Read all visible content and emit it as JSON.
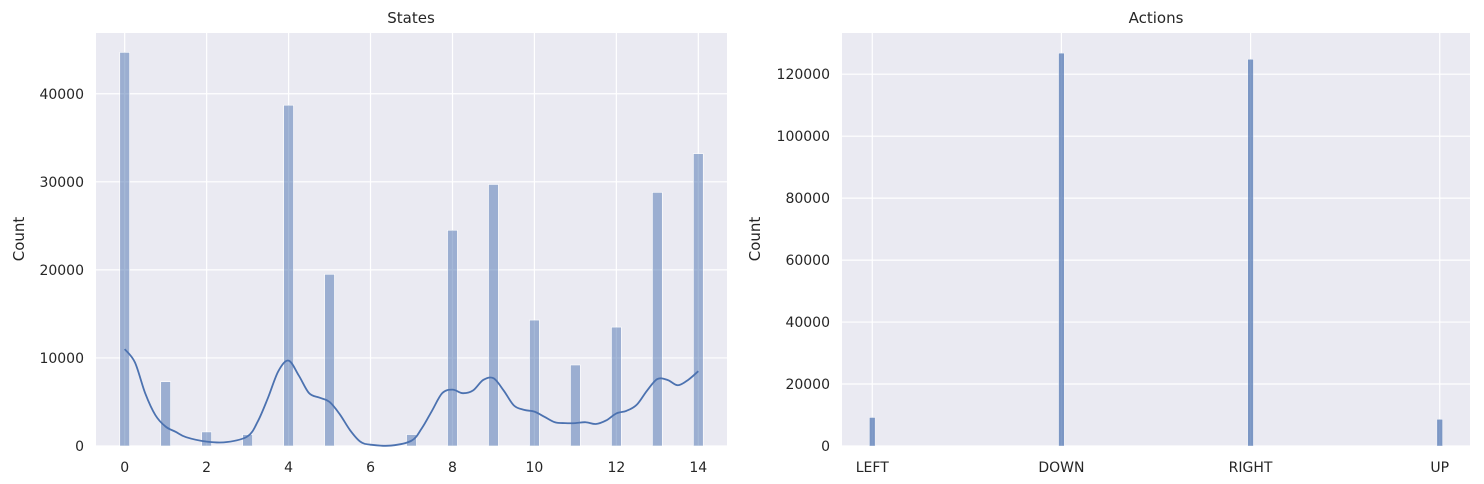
{
  "colors": {
    "axes_bg": "#EAEAF2",
    "grid": "#FFFFFF",
    "bar_fill": "#4C72B0",
    "kde_line": "#4C72B0",
    "text": "#262626"
  },
  "chart_data": [
    {
      "type": "bar",
      "style": "histogram",
      "title": "States",
      "xlabel": "",
      "ylabel": "Count",
      "grid": true,
      "xlim": [
        -0.7,
        14.7
      ],
      "ylim": [
        0,
        46900
      ],
      "xticks": [
        0,
        2,
        4,
        6,
        8,
        10,
        12,
        14
      ],
      "yticks": [
        0,
        10000,
        20000,
        30000,
        40000
      ],
      "bar_width": 0.24,
      "bars": [
        {
          "x": 0,
          "count": 44700
        },
        {
          "x": 1,
          "count": 7300
        },
        {
          "x": 2,
          "count": 1600
        },
        {
          "x": 3,
          "count": 1300
        },
        {
          "x": 4,
          "count": 38700
        },
        {
          "x": 5,
          "count": 19500
        },
        {
          "x": 7,
          "count": 1300
        },
        {
          "x": 8,
          "count": 24500
        },
        {
          "x": 9,
          "count": 29700
        },
        {
          "x": 10,
          "count": 14300
        },
        {
          "x": 11,
          "count": 9200
        },
        {
          "x": 12,
          "count": 13500
        },
        {
          "x": 13,
          "count": 28800
        },
        {
          "x": 14,
          "count": 33200
        }
      ],
      "kde": {
        "x": [
          0,
          0.25,
          0.5,
          0.75,
          1,
          1.25,
          1.5,
          2,
          2.5,
          3,
          3.25,
          3.5,
          3.75,
          4,
          4.25,
          4.5,
          4.75,
          5,
          5.25,
          5.5,
          5.75,
          6,
          6.5,
          7,
          7.25,
          7.5,
          7.75,
          8,
          8.25,
          8.5,
          8.75,
          9,
          9.25,
          9.5,
          9.75,
          10,
          10.25,
          10.5,
          10.75,
          11,
          11.25,
          11.5,
          11.75,
          12,
          12.25,
          12.5,
          12.75,
          13,
          13.25,
          13.5,
          13.75,
          14
        ],
        "y": [
          11000,
          9500,
          6000,
          3500,
          2200,
          1600,
          1000,
          500,
          450,
          1100,
          2800,
          5500,
          8500,
          9700,
          8000,
          6000,
          5500,
          5000,
          3600,
          1800,
          500,
          150,
          50,
          600,
          2000,
          4000,
          6000,
          6400,
          6000,
          6300,
          7500,
          7700,
          6300,
          4600,
          4100,
          3900,
          3300,
          2700,
          2600,
          2600,
          2700,
          2500,
          2900,
          3700,
          4000,
          4700,
          6300,
          7600,
          7500,
          6900,
          7500,
          8500
        ]
      }
    },
    {
      "type": "bar",
      "style": "histogram",
      "title": "Actions",
      "xlabel": "",
      "ylabel": "Count",
      "grid": true,
      "categories": [
        "LEFT",
        "DOWN",
        "RIGHT",
        "UP"
      ],
      "xlim": [
        -0.16,
        3.16
      ],
      "ylim": [
        0,
        133300
      ],
      "yticks": [
        0,
        20000,
        40000,
        60000,
        80000,
        100000,
        120000
      ],
      "bar_width": 0.03,
      "values": [
        9200,
        126800,
        124800,
        8600
      ]
    }
  ]
}
